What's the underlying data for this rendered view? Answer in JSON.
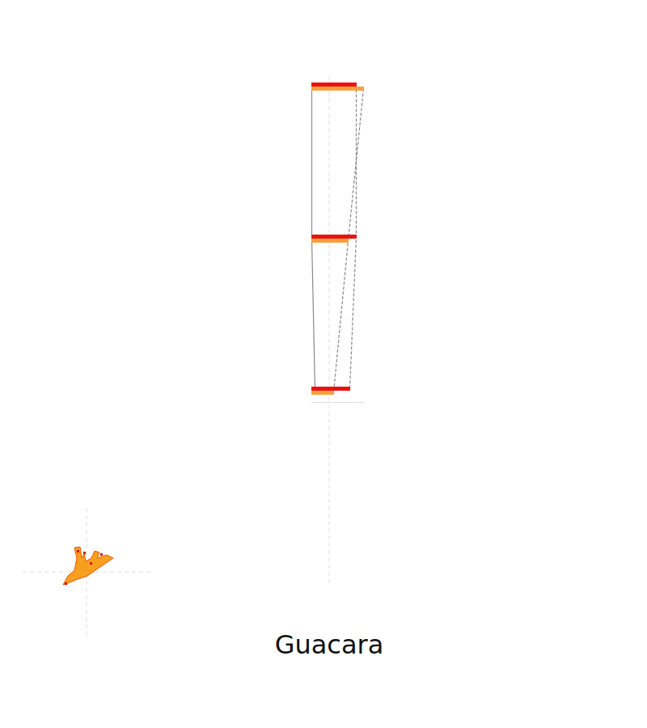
{
  "chart_data": {
    "type": "bar",
    "orientation": "horizontal",
    "title": "Guacara",
    "categories": [
      null,
      null,
      null
    ],
    "series": [
      {
        "color": "#ee1111",
        "values": [
          56,
          56,
          48
        ]
      },
      {
        "color": "#f7a03c",
        "values": [
          65,
          46,
          28
        ]
      }
    ],
    "xlim": [
      0,
      65
    ],
    "xticks": [],
    "tick_labels": false,
    "grid": false
  }
}
